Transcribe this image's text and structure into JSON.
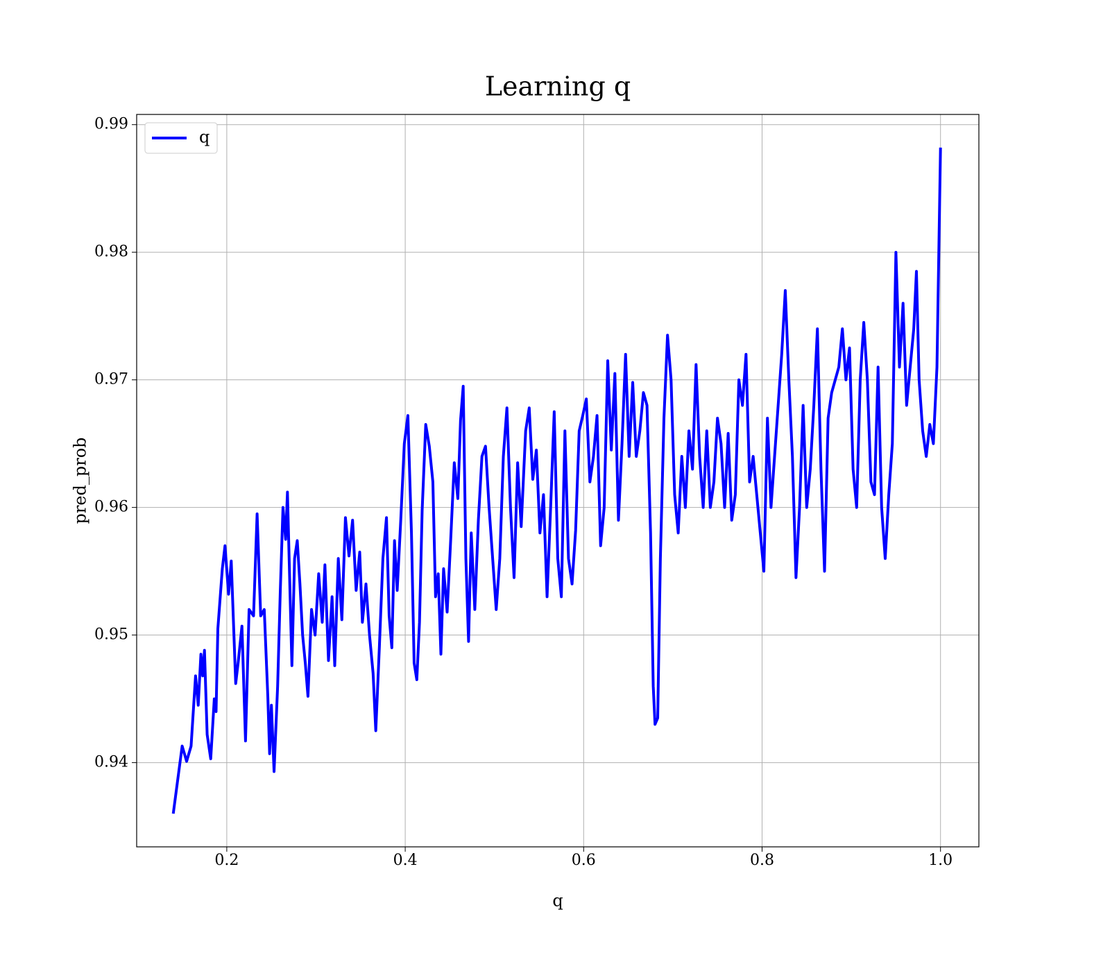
{
  "chart_data": {
    "type": "line",
    "title": "Learning q",
    "xlabel": "q",
    "ylabel": "pred_prob",
    "xlim": [
      0.099,
      1.043
    ],
    "ylim": [
      0.9334,
      0.9908
    ],
    "xticks": [
      0.2,
      0.4,
      0.6,
      0.8,
      {
        "value": 1,
        "label": "1.0"
      }
    ],
    "yticks": [
      0.94,
      0.95,
      0.96,
      0.97,
      0.98,
      0.99
    ],
    "grid": true,
    "legend": "upper left",
    "x": [
      0.14,
      0.15,
      0.155,
      0.16,
      0.165,
      0.168,
      0.171,
      0.173,
      0.175,
      0.178,
      0.182,
      0.186,
      0.188,
      0.19,
      0.195,
      0.198,
      0.202,
      0.205,
      0.21,
      0.213,
      0.217,
      0.221,
      0.225,
      0.23,
      0.234,
      0.238,
      0.242,
      0.246,
      0.248,
      0.25,
      0.253,
      0.257,
      0.26,
      0.263,
      0.266,
      0.268,
      0.271,
      0.273,
      0.276,
      0.279,
      0.282,
      0.285,
      0.288,
      0.291,
      0.295,
      0.299,
      0.303,
      0.307,
      0.31,
      0.314,
      0.318,
      0.321,
      0.325,
      0.329,
      0.333,
      0.337,
      0.341,
      0.345,
      0.349,
      0.352,
      0.356,
      0.36,
      0.364,
      0.367,
      0.371,
      0.375,
      0.379,
      0.382,
      0.385,
      0.388,
      0.391,
      0.395,
      0.399,
      0.403,
      0.407,
      0.41,
      0.413,
      0.416,
      0.419,
      0.423,
      0.427,
      0.431,
      0.434,
      0.437,
      0.44,
      0.443,
      0.447,
      0.451,
      0.455,
      0.459,
      0.462,
      0.465,
      0.468,
      0.471,
      0.474,
      0.478,
      0.482,
      0.486,
      0.49,
      0.494,
      0.498,
      0.502,
      0.506,
      0.51,
      0.514,
      0.518,
      0.522,
      0.526,
      0.53,
      0.535,
      0.539,
      0.543,
      0.547,
      0.551,
      0.555,
      0.559,
      0.563,
      0.567,
      0.571,
      0.575,
      0.579,
      0.583,
      0.587,
      0.591,
      0.595,
      0.599,
      0.603,
      0.607,
      0.611,
      0.615,
      0.619,
      0.623,
      0.627,
      0.631,
      0.635,
      0.639,
      0.643,
      0.647,
      0.651,
      0.655,
      0.659,
      0.663,
      0.667,
      0.671,
      0.675,
      0.678,
      0.68,
      0.683,
      0.686,
      0.69,
      0.694,
      0.698,
      0.702,
      0.706,
      0.71,
      0.714,
      0.718,
      0.722,
      0.726,
      0.73,
      0.734,
      0.738,
      0.742,
      0.746,
      0.75,
      0.754,
      0.758,
      0.762,
      0.766,
      0.77,
      0.774,
      0.778,
      0.782,
      0.786,
      0.79,
      0.794,
      0.798,
      0.802,
      0.806,
      0.81,
      0.814,
      0.818,
      0.822,
      0.826,
      0.83,
      0.834,
      0.838,
      0.842,
      0.846,
      0.85,
      0.854,
      0.858,
      0.862,
      0.866,
      0.87,
      0.874,
      0.878,
      0.882,
      0.886,
      0.89,
      0.894,
      0.898,
      0.902,
      0.906,
      0.91,
      0.914,
      0.918,
      0.922,
      0.926,
      0.93,
      0.934,
      0.938,
      0.942,
      0.946,
      0.95,
      0.954,
      0.958,
      0.962,
      0.966,
      0.97,
      0.973,
      0.976,
      0.98,
      0.984,
      0.988,
      0.992,
      0.996,
      1.0
    ],
    "series": [
      {
        "name": "q",
        "color": "#0000ff",
        "values": [
          0.936,
          0.9413,
          0.9401,
          0.9413,
          0.9468,
          0.9445,
          0.9485,
          0.9468,
          0.9488,
          0.9422,
          0.9403,
          0.945,
          0.944,
          0.9505,
          0.9552,
          0.957,
          0.9532,
          0.9558,
          0.9462,
          0.948,
          0.9507,
          0.9417,
          0.952,
          0.9515,
          0.9595,
          0.9515,
          0.952,
          0.9452,
          0.9407,
          0.9445,
          0.9393,
          0.946,
          0.9535,
          0.96,
          0.9575,
          0.9612,
          0.953,
          0.9476,
          0.956,
          0.9574,
          0.954,
          0.95,
          0.9478,
          0.9452,
          0.952,
          0.95,
          0.9548,
          0.951,
          0.9555,
          0.948,
          0.953,
          0.9476,
          0.956,
          0.9512,
          0.9592,
          0.9562,
          0.959,
          0.9535,
          0.9565,
          0.951,
          0.954,
          0.95,
          0.947,
          0.9425,
          0.949,
          0.956,
          0.9592,
          0.9515,
          0.949,
          0.9574,
          0.9535,
          0.959,
          0.965,
          0.9672,
          0.958,
          0.9478,
          0.9465,
          0.951,
          0.9598,
          0.9665,
          0.9648,
          0.962,
          0.953,
          0.9548,
          0.9485,
          0.9552,
          0.9518,
          0.9575,
          0.9635,
          0.9607,
          0.9668,
          0.9695,
          0.956,
          0.9495,
          0.958,
          0.952,
          0.959,
          0.964,
          0.9648,
          0.96,
          0.956,
          0.952,
          0.956,
          0.964,
          0.9678,
          0.96,
          0.9545,
          0.9635,
          0.9585,
          0.966,
          0.9678,
          0.9622,
          0.9645,
          0.958,
          0.961,
          0.953,
          0.96,
          0.9675,
          0.956,
          0.953,
          0.966,
          0.956,
          0.954,
          0.9582,
          0.966,
          0.9672,
          0.9685,
          0.962,
          0.964,
          0.9672,
          0.957,
          0.96,
          0.9715,
          0.9645,
          0.9705,
          0.959,
          0.965,
          0.972,
          0.964,
          0.9698,
          0.964,
          0.966,
          0.969,
          0.968,
          0.958,
          0.946,
          0.943,
          0.9435,
          0.956,
          0.967,
          0.9735,
          0.97,
          0.961,
          0.958,
          0.964,
          0.96,
          0.966,
          0.963,
          0.9712,
          0.964,
          0.96,
          0.966,
          0.96,
          0.962,
          0.967,
          0.965,
          0.96,
          0.9658,
          0.959,
          0.961,
          0.97,
          0.968,
          0.972,
          0.962,
          0.964,
          0.961,
          0.958,
          0.955,
          0.967,
          0.96,
          0.964,
          0.968,
          0.972,
          0.977,
          0.97,
          0.964,
          0.9545,
          0.96,
          0.968,
          0.96,
          0.963,
          0.968,
          0.974,
          0.963,
          0.955,
          0.967,
          0.969,
          0.97,
          0.971,
          0.974,
          0.97,
          0.9725,
          0.963,
          0.96,
          0.97,
          0.9745,
          0.97,
          0.962,
          0.961,
          0.971,
          0.96,
          0.956,
          0.961,
          0.965,
          0.98,
          0.971,
          0.976,
          0.968,
          0.971,
          0.974,
          0.9785,
          0.97,
          0.966,
          0.964,
          0.9665,
          0.965,
          0.971,
          0.9882
        ]
      }
    ]
  }
}
